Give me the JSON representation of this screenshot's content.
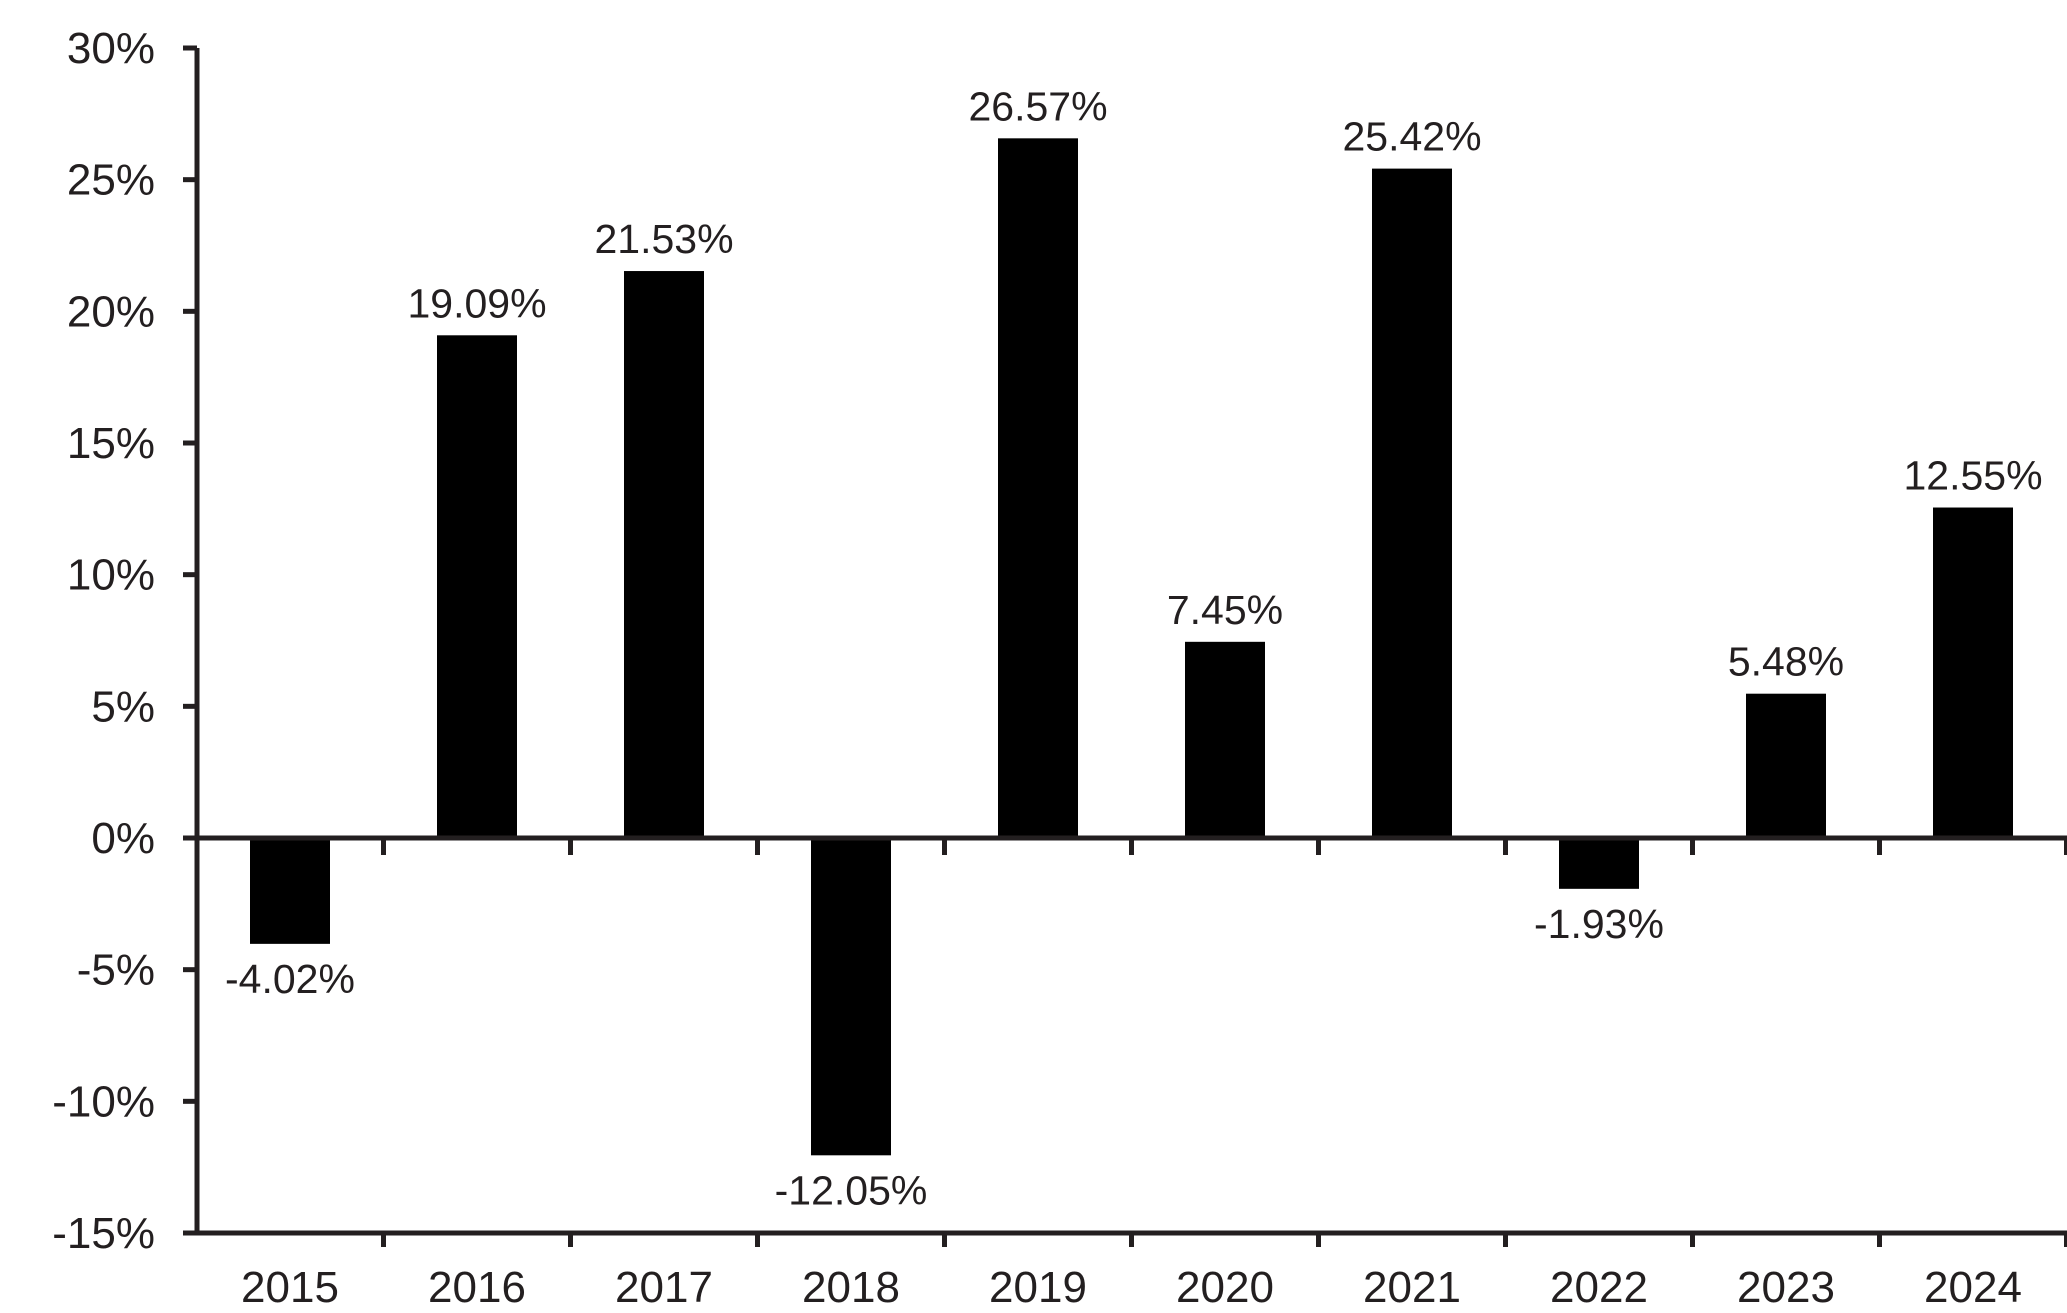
{
  "chart_data": {
    "type": "bar",
    "title": "",
    "xlabel": "",
    "ylabel": "",
    "categories": [
      "2015",
      "2016",
      "2017",
      "2018",
      "2019",
      "2020",
      "2021",
      "2022",
      "2023",
      "2024"
    ],
    "values": [
      -4.02,
      19.09,
      21.53,
      -12.05,
      26.57,
      7.45,
      25.42,
      -1.93,
      5.48,
      12.55
    ],
    "value_labels": [
      "-4.02%",
      "19.09%",
      "21.53%",
      "-12.05%",
      "26.57%",
      "7.45%",
      "25.42%",
      "-1.93%",
      "5.48%",
      "12.55%"
    ],
    "ylim": [
      -15,
      30
    ],
    "yticks": [
      30,
      25,
      20,
      15,
      10,
      5,
      0,
      -5,
      -10,
      -15
    ],
    "ytick_labels": [
      "30%",
      "25%",
      "20%",
      "15%",
      "10%",
      "5%",
      "0%",
      "-5%",
      "-10%",
      "-15%"
    ],
    "grid": false,
    "legend": "none",
    "bar_color": "#000000",
    "axis_color": "#231f20"
  }
}
